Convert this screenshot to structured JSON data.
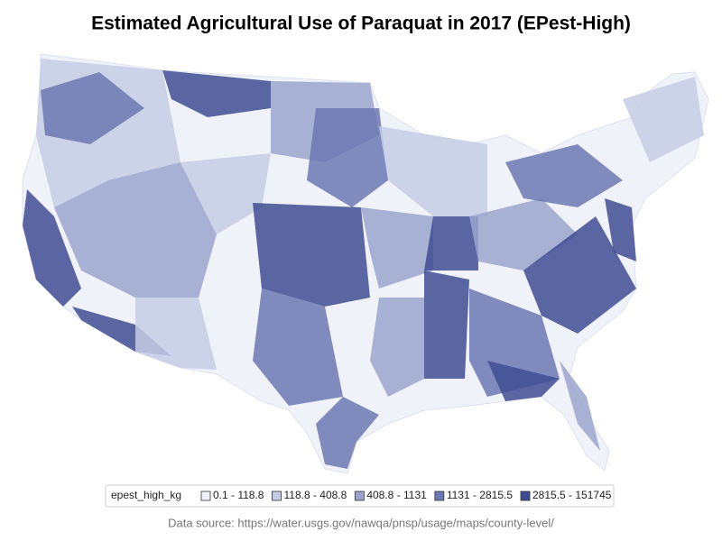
{
  "title": "Estimated Agricultural Use of Paraquat in 2017 (EPest-High)",
  "legend": {
    "title": "epest_high_kg",
    "items": [
      {
        "label": "0.1 - 118.8",
        "color": "#f0f2fa"
      },
      {
        "label": "118.8 - 408.8",
        "color": "#c6cce4"
      },
      {
        "label": "408.8 - 1131",
        "color": "#9ba4cd"
      },
      {
        "label": "1131 - 2815.5",
        "color": "#6d78b0"
      },
      {
        "label": "2815.5 - 151745",
        "color": "#3f4c91"
      }
    ]
  },
  "source": "Data source: https://water.usgs.gov/nawqa/pnsp/usage/maps/county-level/"
}
